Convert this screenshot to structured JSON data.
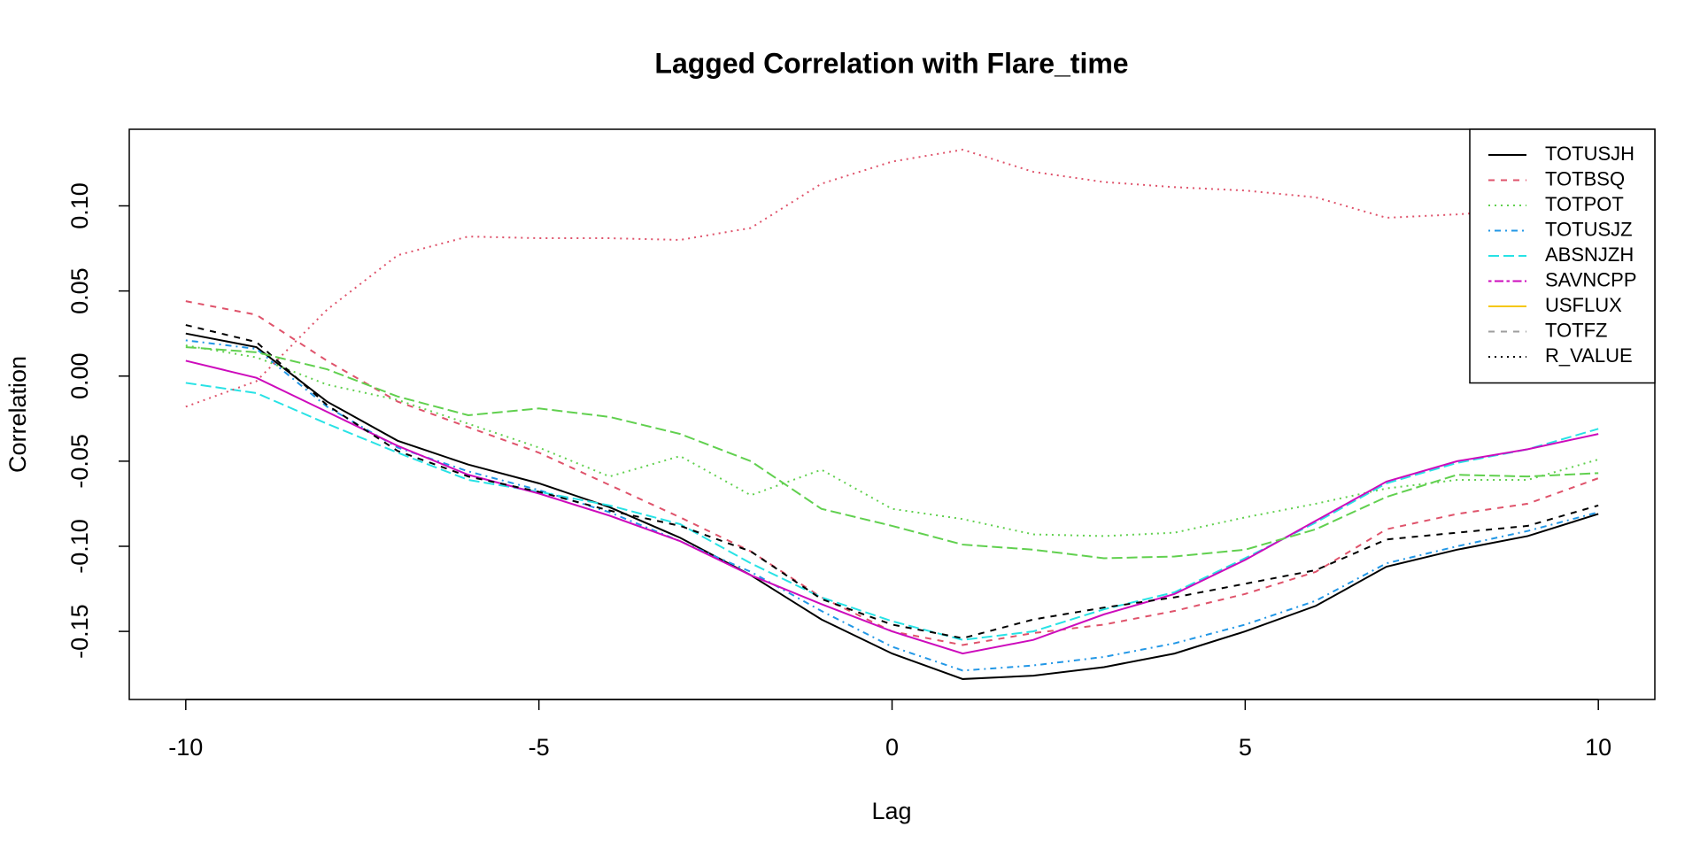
{
  "chart_data": {
    "type": "line",
    "title": "Lagged Correlation with Flare_time",
    "x_label": "Lag",
    "y_label": "Correlation",
    "x": [
      -10,
      -9,
      -8,
      -7,
      -6,
      -5,
      -4,
      -3,
      -2,
      -1,
      0,
      1,
      2,
      3,
      4,
      5,
      6,
      7,
      8,
      9,
      10
    ],
    "xlim": [
      -10.8,
      10.8
    ],
    "xticks": [
      -10,
      -5,
      0,
      5,
      10
    ],
    "ylim": [
      -0.19,
      0.145
    ],
    "yticks": [
      -0.15,
      {
        "value": -0.1,
        "label": "-0.10"
      },
      -0.05,
      {
        "value": 0,
        "label": "0.00"
      },
      0.05,
      {
        "value": 0.1,
        "label": "0.10"
      }
    ],
    "legend_position": "topright",
    "series": [
      {
        "name": "TOTUSJH",
        "color": "#000000",
        "dash": "solid",
        "legend_color": "#000000",
        "legend_dash": "solid",
        "values": [
          0.025,
          0.017,
          -0.015,
          -0.038,
          -0.052,
          -0.063,
          -0.077,
          -0.095,
          -0.117,
          -0.143,
          -0.163,
          -0.178,
          -0.176,
          -0.171,
          -0.163,
          -0.15,
          -0.135,
          -0.112,
          -0.102,
          -0.094,
          -0.081
        ]
      },
      {
        "name": "TOTBSQ",
        "color": "#DF536B",
        "dash": "dashed",
        "legend_color": "#DF536B",
        "legend_dash": "dashed",
        "values": [
          0.044,
          0.036,
          0.009,
          -0.015,
          -0.03,
          -0.045,
          -0.064,
          -0.083,
          -0.103,
          -0.13,
          -0.15,
          -0.158,
          -0.151,
          -0.146,
          -0.138,
          -0.128,
          -0.115,
          -0.09,
          -0.081,
          -0.075,
          -0.06
        ]
      },
      {
        "name": "TOTPOT",
        "color": "#61D04F",
        "dash": "dotted",
        "legend_color": "#61D04F",
        "legend_dash": "dotted",
        "values": [
          0.018,
          0.011,
          -0.005,
          -0.014,
          -0.028,
          -0.042,
          -0.059,
          -0.047,
          -0.07,
          -0.055,
          -0.078,
          -0.084,
          -0.093,
          -0.094,
          -0.092,
          -0.083,
          -0.075,
          -0.066,
          -0.061,
          -0.061,
          -0.049
        ]
      },
      {
        "name": "TOTUSJZ",
        "color": "#2297E6",
        "dash": "dotdash",
        "legend_color": "#2297E6",
        "legend_dash": "dotdash",
        "values": [
          0.021,
          0.016,
          -0.018,
          -0.042,
          -0.056,
          -0.067,
          -0.08,
          -0.097,
          -0.115,
          -0.138,
          -0.159,
          -0.173,
          -0.17,
          -0.165,
          -0.157,
          -0.146,
          -0.132,
          -0.11,
          -0.1,
          -0.091,
          -0.08
        ]
      },
      {
        "name": "ABSNJZH",
        "color": "#28E2E5",
        "dash": "longdash",
        "legend_color": "#28E2E5",
        "legend_dash": "longdash",
        "values": [
          -0.004,
          -0.01,
          -0.028,
          -0.045,
          -0.061,
          -0.068,
          -0.076,
          -0.087,
          -0.11,
          -0.13,
          -0.144,
          -0.155,
          -0.15,
          -0.137,
          -0.127,
          -0.107,
          -0.086,
          -0.063,
          -0.051,
          -0.043,
          -0.031
        ]
      },
      {
        "name": "SAVNCPP",
        "color": "#CD0BBC",
        "dash": "solid",
        "legend_color": "#CD0BBC",
        "legend_dash": "twodash",
        "values": [
          0.009,
          -0.001,
          -0.021,
          -0.041,
          -0.058,
          -0.069,
          -0.082,
          -0.097,
          -0.117,
          -0.134,
          -0.15,
          -0.163,
          -0.155,
          -0.14,
          -0.128,
          -0.108,
          -0.085,
          -0.062,
          -0.05,
          -0.043,
          -0.034
        ]
      },
      {
        "name": "USFLUX",
        "color": "#000000",
        "dash": "dashed",
        "legend_color": "#F5C710",
        "legend_dash": "solid",
        "values": [
          0.03,
          0.02,
          -0.017,
          -0.044,
          -0.059,
          -0.068,
          -0.079,
          -0.088,
          -0.103,
          -0.131,
          -0.146,
          -0.154,
          -0.143,
          -0.136,
          -0.13,
          -0.122,
          -0.114,
          -0.096,
          -0.092,
          -0.088,
          -0.076
        ]
      },
      {
        "name": "TOTFZ",
        "color": "#DF536B",
        "dash": "dotted",
        "legend_color": "#9E9E9E",
        "legend_dash": "dashed",
        "values": [
          -0.018,
          -0.003,
          0.039,
          0.071,
          0.082,
          0.081,
          0.081,
          0.08,
          0.087,
          0.113,
          0.126,
          0.133,
          0.12,
          0.114,
          0.111,
          0.109,
          0.105,
          0.093,
          0.095,
          0.098,
          0.102
        ]
      },
      {
        "name": "R_VALUE",
        "color": "#61D04F",
        "dash": "longdash",
        "legend_color": "#000000",
        "legend_dash": "dotted",
        "values": [
          0.017,
          0.014,
          0.004,
          -0.012,
          -0.023,
          -0.019,
          -0.024,
          -0.034,
          -0.05,
          -0.078,
          -0.088,
          -0.099,
          -0.102,
          -0.107,
          -0.106,
          -0.102,
          -0.09,
          -0.071,
          -0.058,
          -0.059,
          -0.057
        ]
      }
    ]
  }
}
